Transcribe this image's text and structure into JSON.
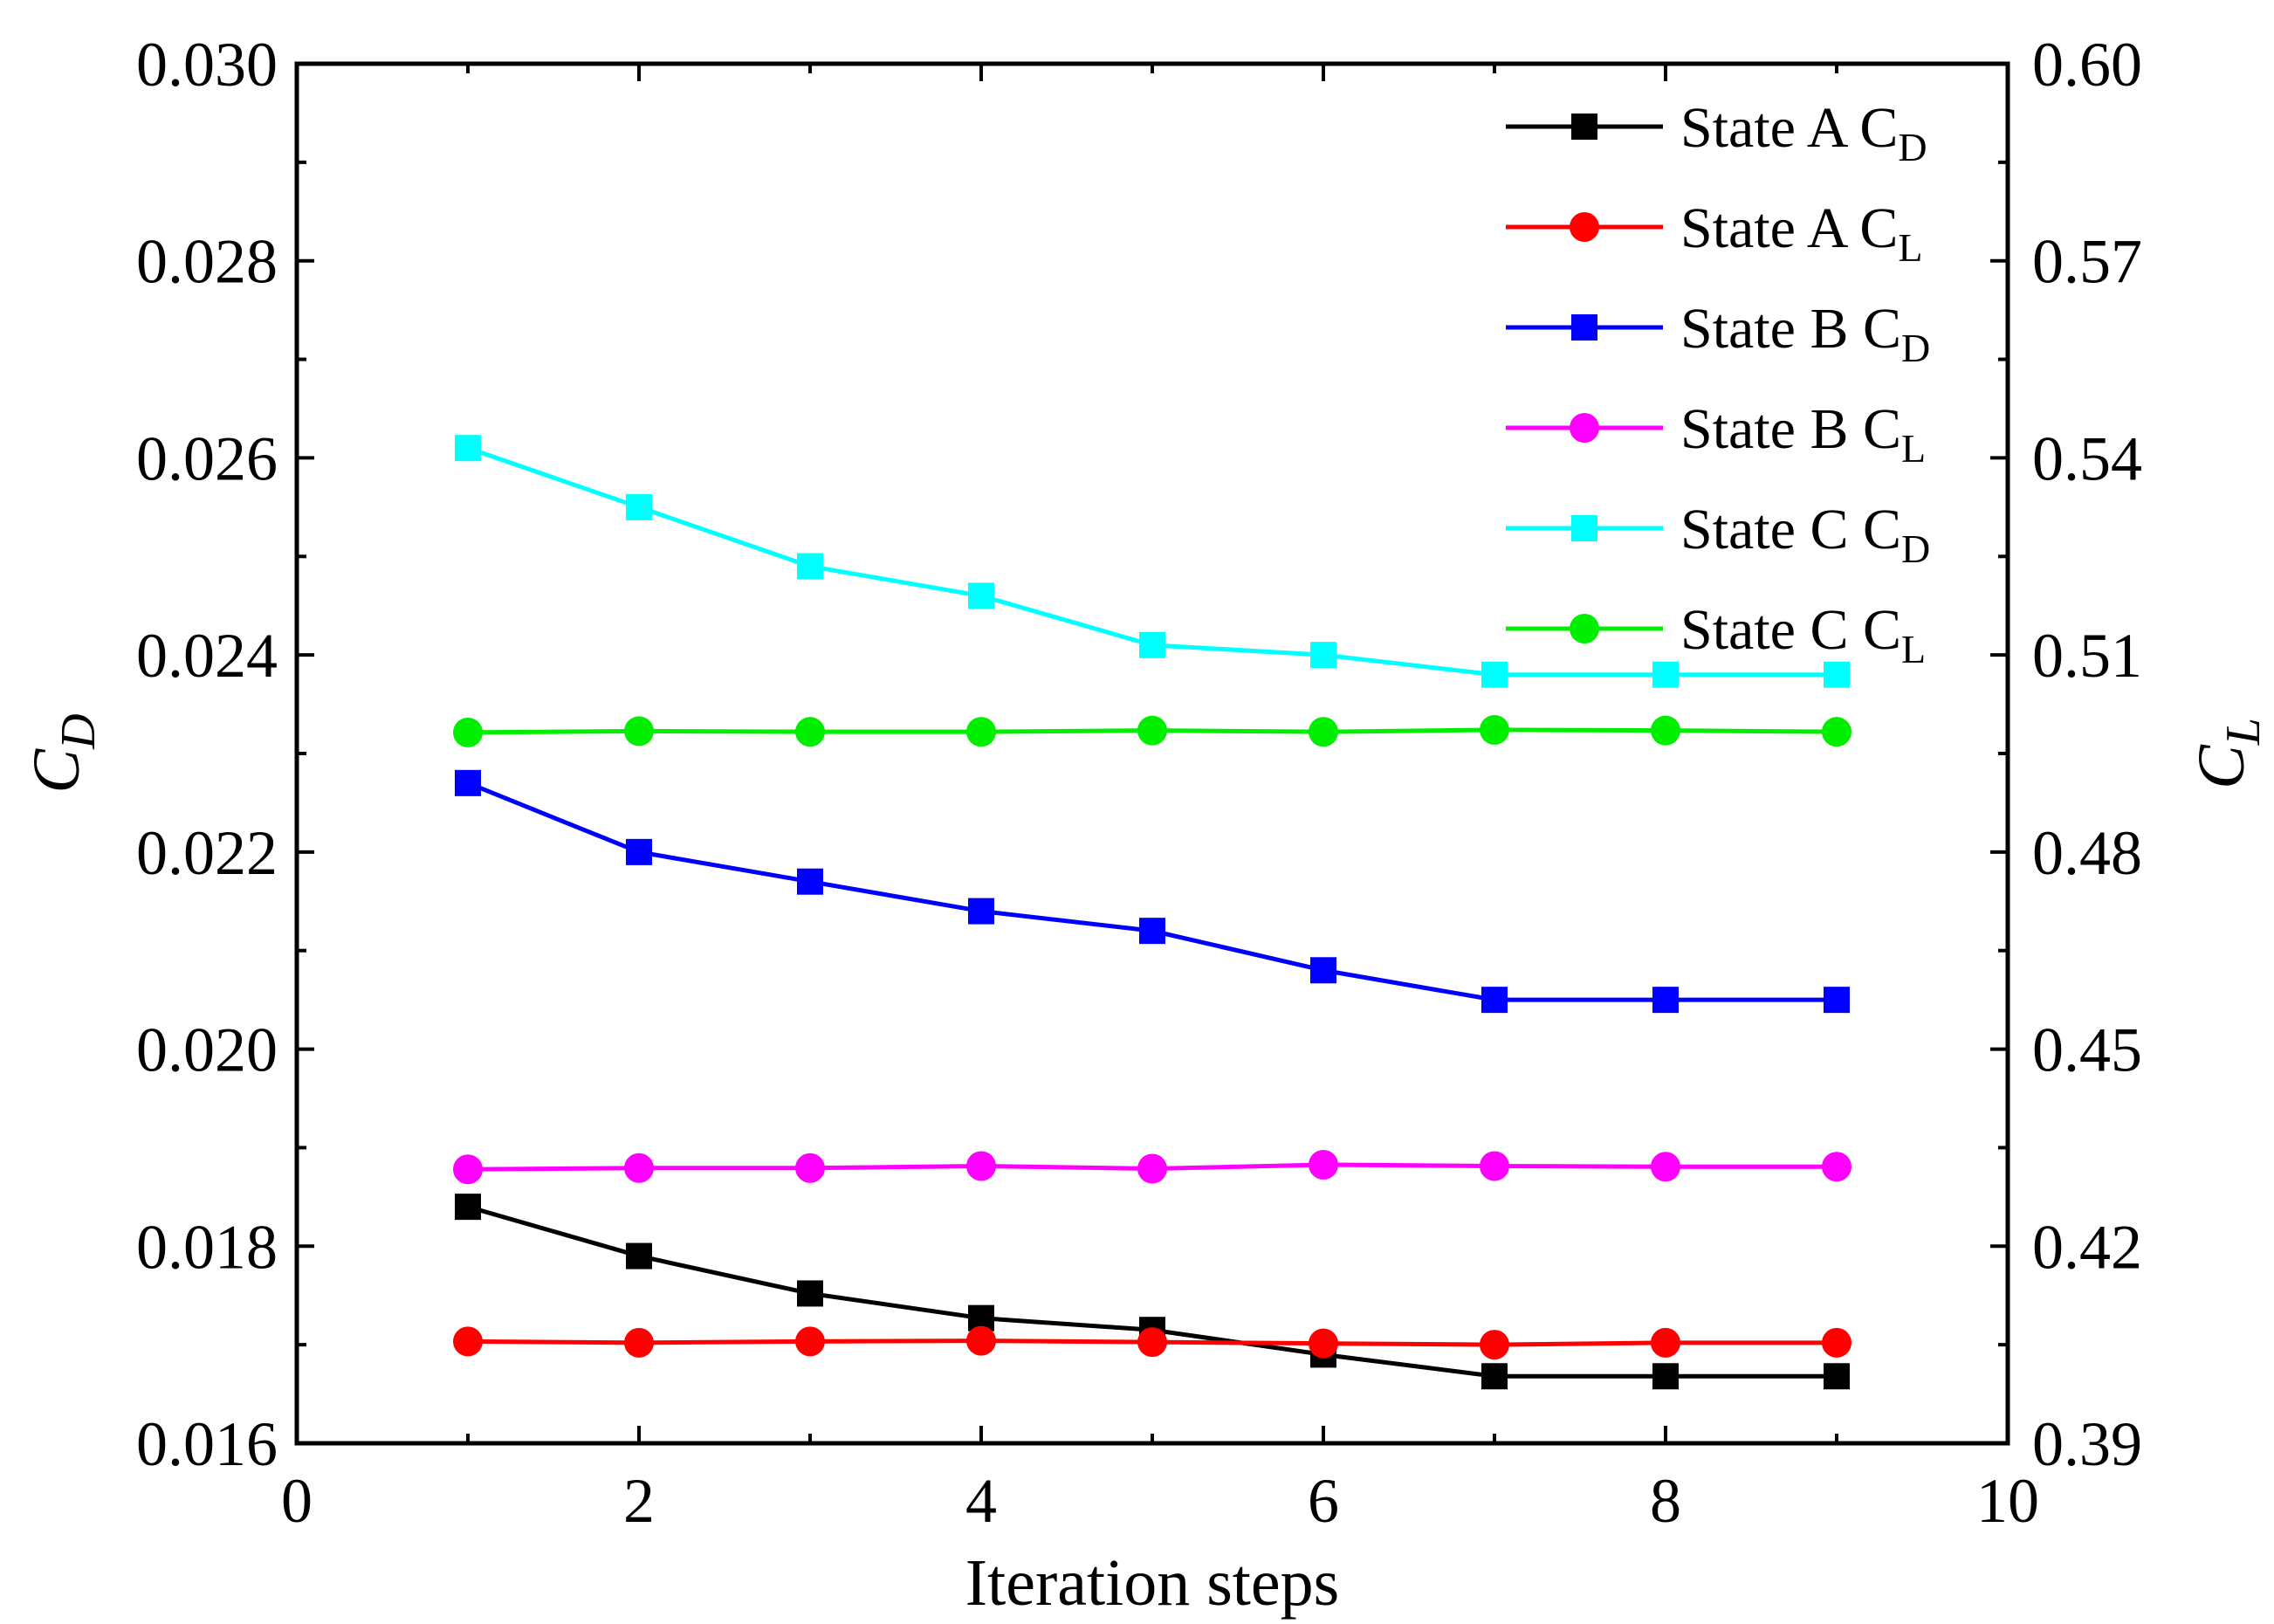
{
  "chart_data": {
    "type": "line",
    "x": [
      1,
      2,
      3,
      4,
      5,
      6,
      7,
      8,
      9
    ],
    "xlabel": "Iteration steps",
    "xlim": [
      0,
      10
    ],
    "xticks": [
      "0",
      "2",
      "4",
      "6",
      "8",
      "10"
    ],
    "ylabel_left": {
      "main": "C",
      "sub": "D"
    },
    "ylabel_right": {
      "main": "C",
      "sub": "L"
    },
    "ylim_left": [
      0.016,
      0.03
    ],
    "ylim_right": [
      0.39,
      0.6
    ],
    "yticks_left": [
      "0.016",
      "0.018",
      "0.020",
      "0.022",
      "0.024",
      "0.026",
      "0.028",
      "0.030"
    ],
    "yticks_right": [
      "0.39",
      "0.42",
      "0.45",
      "0.48",
      "0.51",
      "0.54",
      "0.57",
      "0.60"
    ],
    "legend_position": "top-right",
    "series": [
      {
        "name": "State A C_D",
        "label": "State A C",
        "sub": "D",
        "axis": "left",
        "marker": "square",
        "color": "#000000",
        "values": [
          0.0184,
          0.0179,
          0.01752,
          0.01727,
          0.01715,
          0.0169,
          0.01668,
          0.01668,
          0.01668
        ]
      },
      {
        "name": "State A C_L",
        "label": "State A C",
        "sub": "L",
        "axis": "right",
        "marker": "circle",
        "color": "#ff0000",
        "values": [
          0.4055,
          0.4053,
          0.4055,
          0.4056,
          0.4054,
          0.4052,
          0.405,
          0.4053,
          0.4053
        ]
      },
      {
        "name": "State B C_D",
        "label": "State B C",
        "sub": "D",
        "axis": "left",
        "marker": "square",
        "color": "#0000ff",
        "values": [
          0.0227,
          0.022,
          0.0217,
          0.0214,
          0.0212,
          0.0208,
          0.0205,
          0.0205,
          0.0205
        ]
      },
      {
        "name": "State B C_L",
        "label": "State B C",
        "sub": "L",
        "axis": "right",
        "marker": "circle",
        "color": "#ff00ff",
        "values": [
          0.4317,
          0.4319,
          0.4319,
          0.4322,
          0.4318,
          0.4324,
          0.4322,
          0.4321,
          0.4321
        ]
      },
      {
        "name": "State C C_D",
        "label": "State C C",
        "sub": "D",
        "axis": "left",
        "marker": "square",
        "color": "#00ffff",
        "values": [
          0.0261,
          0.0255,
          0.0249,
          0.0246,
          0.0241,
          0.024,
          0.0238,
          0.0238,
          0.0238
        ]
      },
      {
        "name": "State C C_L",
        "label": "State C C",
        "sub": "L",
        "axis": "right",
        "marker": "circle",
        "color": "#00ee00",
        "values": [
          0.4982,
          0.4984,
          0.4983,
          0.4983,
          0.4985,
          0.4983,
          0.4986,
          0.4985,
          0.4983
        ]
      }
    ]
  }
}
